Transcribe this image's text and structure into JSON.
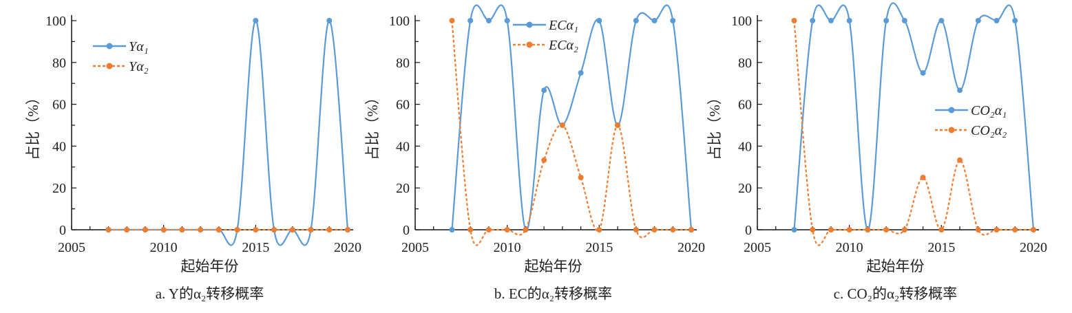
{
  "chart_data": [
    {
      "type": "line",
      "caption": "a. Y的α₂转移概率",
      "xlabel": "起始年份",
      "ylabel": "占比（%）",
      "xlim": [
        2005,
        2020
      ],
      "ylim": [
        0,
        100
      ],
      "xticks": [
        "2005",
        "2010",
        "2015",
        "2020"
      ],
      "yticks": [
        "0",
        "20",
        "40",
        "60",
        "80",
        "100"
      ],
      "legend_position": "top-left",
      "x": [
        2007,
        2008,
        2009,
        2010,
        2011,
        2012,
        2013,
        2014,
        2015,
        2016,
        2017,
        2018,
        2019,
        2020
      ],
      "series": [
        {
          "name": "Yα₁",
          "color": "#5b9bd5",
          "style": "solid",
          "values": [
            0,
            0,
            0,
            0,
            0,
            0,
            0,
            0,
            100,
            0,
            0,
            0,
            100,
            0
          ]
        },
        {
          "name": "Yα₂",
          "color": "#ed7d31",
          "style": "dashed",
          "values": [
            0,
            0,
            0,
            0,
            0,
            0,
            0,
            0,
            0,
            0,
            0,
            0,
            0,
            0
          ]
        }
      ]
    },
    {
      "type": "line",
      "caption": "b. EC的α₂转移概率",
      "xlabel": "起始年份",
      "ylabel": "占比（%）",
      "xlim": [
        2005,
        2020
      ],
      "ylim": [
        0,
        100
      ],
      "xticks": [
        "2005",
        "2010",
        "2015",
        "2020"
      ],
      "yticks": [
        "0",
        "20",
        "40",
        "60",
        "80",
        "100"
      ],
      "legend_position": "top-center",
      "x": [
        2007,
        2008,
        2009,
        2010,
        2011,
        2012,
        2013,
        2014,
        2015,
        2016,
        2017,
        2018,
        2019,
        2020
      ],
      "series": [
        {
          "name": "ECα₁",
          "color": "#5b9bd5",
          "style": "solid",
          "values": [
            0,
            100,
            100,
            100,
            0,
            66.7,
            50,
            75,
            100,
            50,
            100,
            100,
            100,
            0
          ]
        },
        {
          "name": "ECα₂",
          "color": "#ed7d31",
          "style": "dashed",
          "values": [
            100,
            0,
            0,
            0,
            0,
            33.3,
            50,
            25,
            0,
            50,
            0,
            0,
            0,
            0
          ]
        }
      ]
    },
    {
      "type": "line",
      "caption": "c. CO₂的α₂转移概率",
      "xlabel": "起始年份",
      "ylabel": "占比（%）",
      "xlim": [
        2005,
        2020
      ],
      "ylim": [
        0,
        100
      ],
      "xticks": [
        "2005",
        "2010",
        "2015",
        "2020"
      ],
      "yticks": [
        "0",
        "20",
        "40",
        "60",
        "80",
        "100"
      ],
      "legend_position": "center-right",
      "x": [
        2007,
        2008,
        2009,
        2010,
        2011,
        2012,
        2013,
        2014,
        2015,
        2016,
        2017,
        2018,
        2019,
        2020
      ],
      "series": [
        {
          "name": "CO₂α₁",
          "color": "#5b9bd5",
          "style": "solid",
          "values": [
            0,
            100,
            100,
            100,
            0,
            100,
            100,
            75,
            100,
            66.7,
            100,
            100,
            100,
            0
          ]
        },
        {
          "name": "CO₂α₂",
          "color": "#ed7d31",
          "style": "dashed",
          "values": [
            100,
            0,
            0,
            0,
            0,
            0,
            0,
            25,
            0,
            33.3,
            0,
            0,
            0,
            0
          ]
        }
      ]
    }
  ]
}
